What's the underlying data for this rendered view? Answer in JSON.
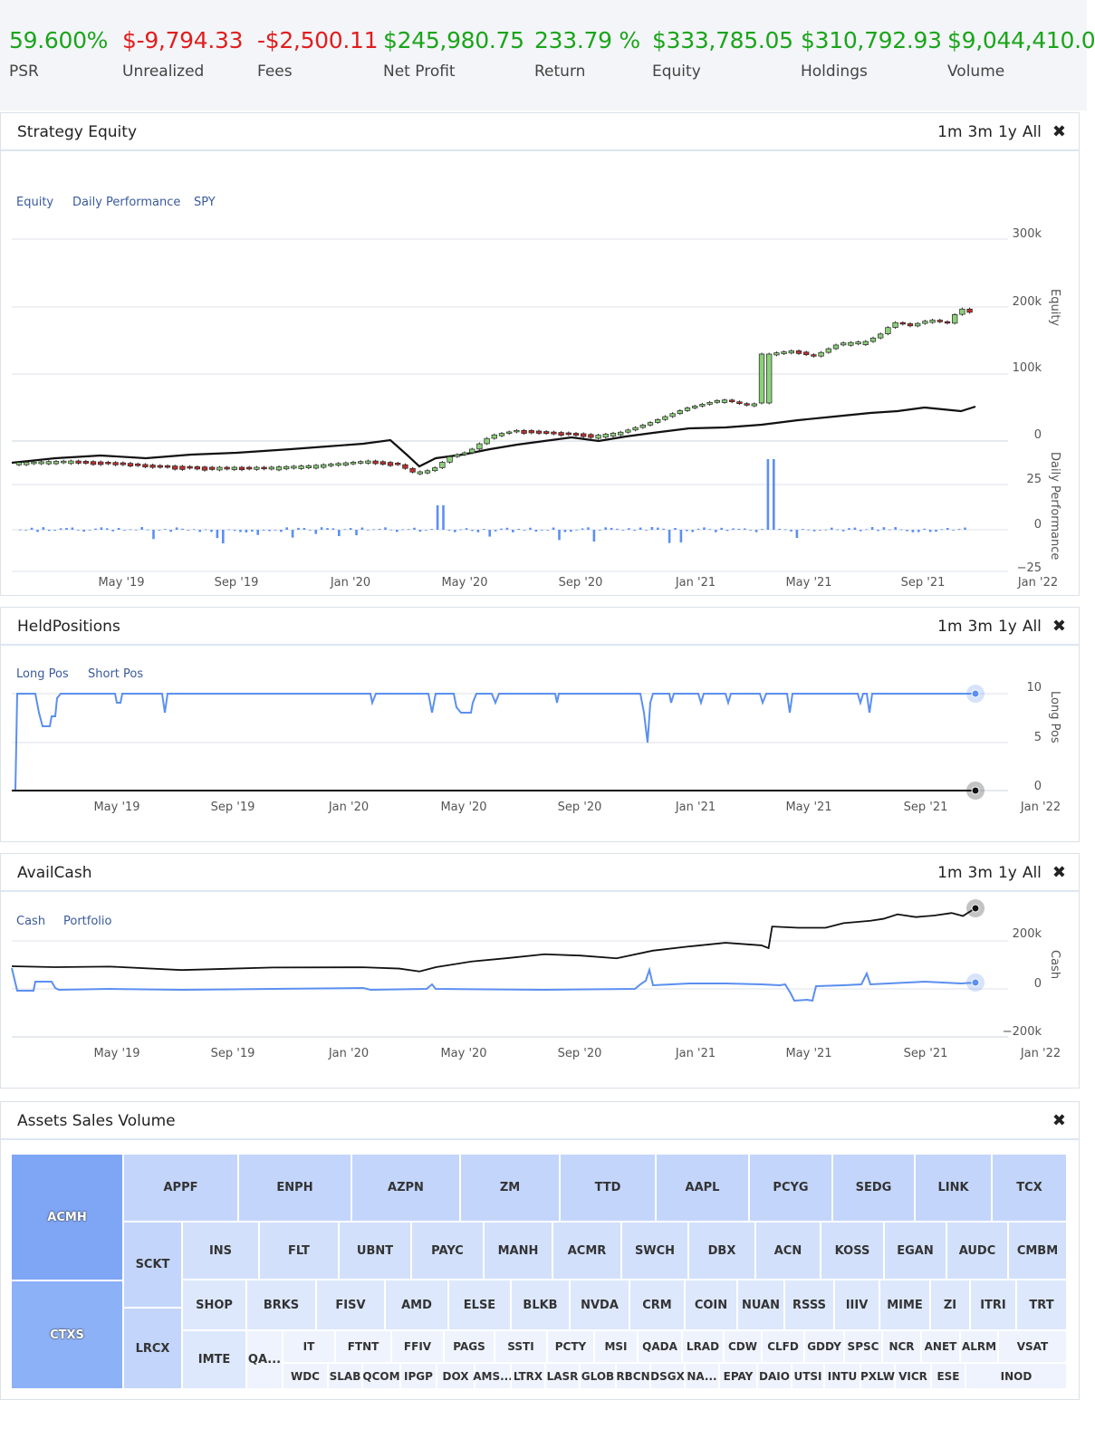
{
  "stats": [
    {
      "value": "59.600%",
      "label": "PSR",
      "tone": "pos"
    },
    {
      "value": "$-9,794.33",
      "label": "Unrealized",
      "tone": "neg"
    },
    {
      "value": "-$2,500.11",
      "label": "Fees",
      "tone": "neg"
    },
    {
      "value": "$245,980.75",
      "label": "Net Profit",
      "tone": "pos"
    },
    {
      "value": "233.79 %",
      "label": "Return",
      "tone": "pos"
    },
    {
      "value": "$333,785.05",
      "label": "Equity",
      "tone": "pos"
    },
    {
      "value": "$310,792.93",
      "label": "Holdings",
      "tone": "pos"
    },
    {
      "value": "$9,044,410.0",
      "label": "Volume",
      "tone": "pos"
    }
  ],
  "ranges": [
    "1m",
    "3m",
    "1y",
    "All"
  ],
  "close_glyph": "✖",
  "colors": {
    "positive": "#1aa51a",
    "negative": "#e01e1e",
    "series_blue": "#5b8ff0",
    "series_black": "#111111",
    "candle_up": "#8cd17a",
    "candle_down": "#c0302e"
  },
  "x_ticks": [
    "May '19",
    "Sep '19",
    "Jan '20",
    "May '20",
    "Sep '20",
    "Jan '21",
    "May '21",
    "Sep '21",
    "Jan '22"
  ],
  "equity_panel": {
    "title": "Strategy Equity",
    "legend": [
      "Equity",
      "Daily Performance",
      "SPY"
    ],
    "equity_axis_label": "Equity",
    "equity_ticks": [
      "300k",
      "200k",
      "100k",
      "0"
    ],
    "perf_axis_label": "Daily Performance",
    "perf_ticks": [
      "25",
      "0",
      "−25"
    ]
  },
  "held_panel": {
    "title": "HeldPositions",
    "legend": [
      "Long Pos",
      "Short Pos"
    ],
    "axis_label": "Long Pos",
    "ticks": [
      "10",
      "5",
      "0"
    ]
  },
  "cash_panel": {
    "title": "AvailCash",
    "legend": [
      "Cash",
      "Portfolio"
    ],
    "axis_label": "Cash",
    "ticks": [
      "200k",
      "0",
      "−200k"
    ]
  },
  "volume_panel": {
    "title": "Assets Sales Volume",
    "tickers": [
      "ACMH",
      "CTXS",
      "SCKT",
      "LRCX",
      "APPF",
      "ENPH",
      "AZPN",
      "ZM",
      "TTD",
      "AAPL",
      "PCYG",
      "SEDG",
      "LINK",
      "TCX",
      "INS",
      "FLT",
      "UBNT",
      "PAYC",
      "MANH",
      "ACMR",
      "SWCH",
      "DBX",
      "ACN",
      "KOSS",
      "EGAN",
      "AUDC",
      "CMBM",
      "SHOP",
      "BRKS",
      "FISV",
      "AMD",
      "ELSE",
      "BLKB",
      "NVDA",
      "CRM",
      "COIN",
      "NUAN",
      "RSSS",
      "IIIV",
      "MIME",
      "ZI",
      "ITRI",
      "TRT",
      "IMTE",
      "QA...",
      "IT",
      "FTNT",
      "FFIV",
      "PAGS",
      "SSTI",
      "PCTY",
      "MSI",
      "QADA",
      "LRAD",
      "CDW",
      "CLFD",
      "GDDY",
      "SPSC",
      "NCR",
      "ANET",
      "ALRM",
      "VSAT",
      "WDC",
      "SLAB",
      "QCOM",
      "IPGP",
      "DOX",
      "AMS...",
      "LTRX",
      "LASR",
      "GLOB",
      "RBCN",
      "DSGX",
      "NA...",
      "EPAY",
      "DAIO",
      "UTSI",
      "INTU",
      "PXLW",
      "VICR",
      "ESE",
      "INOD"
    ]
  }
}
